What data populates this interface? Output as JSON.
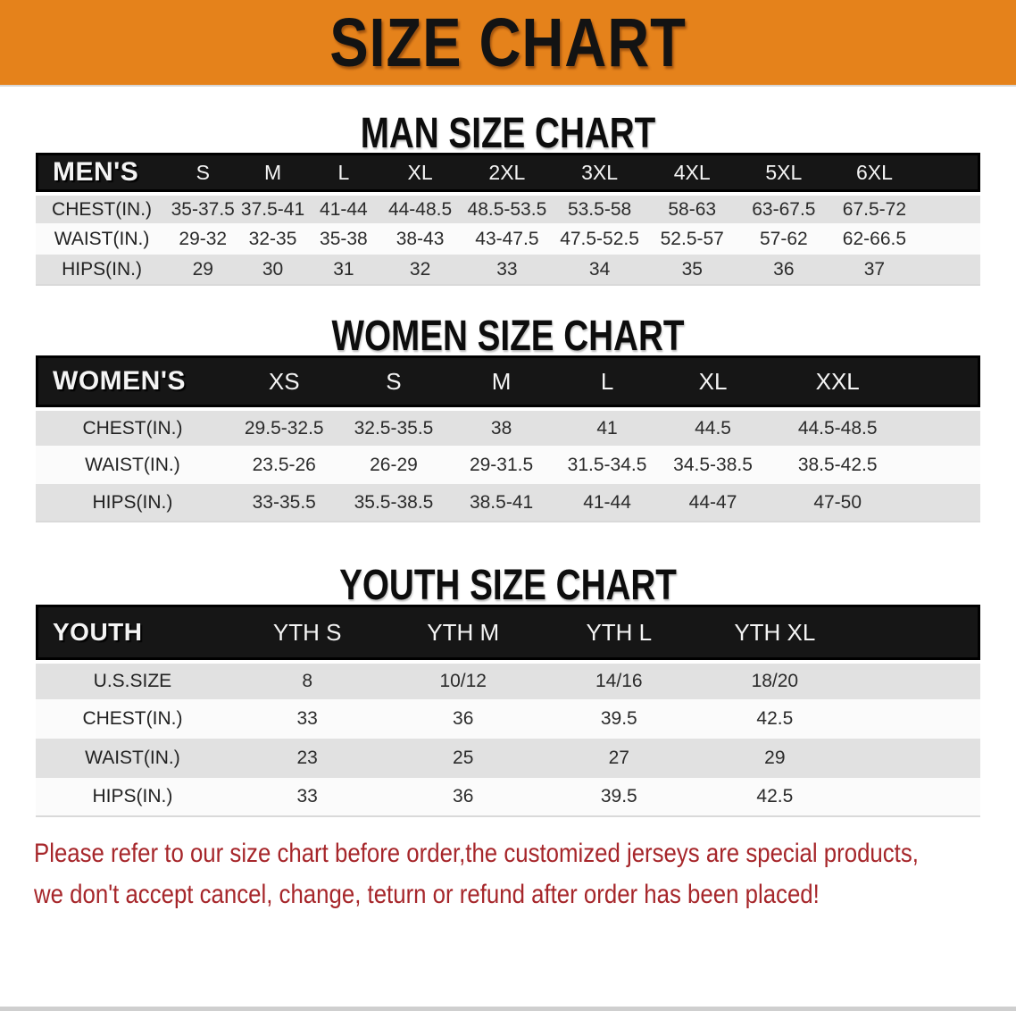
{
  "theme": {
    "banner_bg": "#E5821B",
    "header_bar_bg": "#161616",
    "row_alt_bg": "#E1E1E1",
    "row_bg": "#FBFBFB",
    "disclaimer_color": "#A6262A"
  },
  "banner": {
    "title": "SIZE CHART"
  },
  "sections": [
    {
      "heading": "MAN SIZE CHART",
      "table": {
        "label": "MEN'S",
        "columns": [
          "S",
          "M",
          "L",
          "XL",
          "2XL",
          "3XL",
          "4XL",
          "5XL",
          "6XL"
        ],
        "rows": [
          {
            "label": "CHEST(IN.)",
            "values": [
              "35-37.5",
              "37.5-41",
              "41-44",
              "44-48.5",
              "48.5-53.5",
              "53.5-58",
              "58-63",
              "63-67.5",
              "67.5-72"
            ]
          },
          {
            "label": "WAIST(IN.)",
            "values": [
              "29-32",
              "32-35",
              "35-38",
              "38-43",
              "43-47.5",
              "47.5-52.5",
              "52.5-57",
              "57-62",
              "62-66.5"
            ]
          },
          {
            "label": "HIPS(IN.)",
            "values": [
              "29",
              "30",
              "31",
              "32",
              "33",
              "34",
              "35",
              "36",
              "37"
            ]
          }
        ]
      }
    },
    {
      "heading": "WOMEN SIZE CHART",
      "table": {
        "label": "WOMEN'S",
        "columns": [
          "XS",
          "S",
          "M",
          "L",
          "XL",
          "XXL"
        ],
        "rows": [
          {
            "label": "CHEST(IN.)",
            "values": [
              "29.5-32.5",
              "32.5-35.5",
              "38",
              "41",
              "44.5",
              "44.5-48.5"
            ]
          },
          {
            "label": "WAIST(IN.)",
            "values": [
              "23.5-26",
              "26-29",
              "29-31.5",
              "31.5-34.5",
              "34.5-38.5",
              "38.5-42.5"
            ]
          },
          {
            "label": "HIPS(IN.)",
            "values": [
              "33-35.5",
              "35.5-38.5",
              "38.5-41",
              "41-44",
              "44-47",
              "47-50"
            ]
          }
        ]
      }
    },
    {
      "heading": "YOUTH SIZE CHART",
      "table": {
        "label": "YOUTH",
        "columns": [
          "YTH S",
          "YTH M",
          "YTH L",
          "YTH XL"
        ],
        "rows": [
          {
            "label": "U.S.SIZE",
            "values": [
              "8",
              "10/12",
              "14/16",
              "18/20"
            ]
          },
          {
            "label": "CHEST(IN.)",
            "values": [
              "33",
              "36",
              "39.5",
              "42.5"
            ]
          },
          {
            "label": "WAIST(IN.)",
            "values": [
              "23",
              "25",
              "27",
              "29"
            ]
          },
          {
            "label": "HIPS(IN.)",
            "values": [
              "33",
              "36",
              "39.5",
              "42.5"
            ]
          }
        ]
      }
    }
  ],
  "disclaimer": {
    "line1": "Please refer to our size chart before order,the customized jerseys are special products,",
    "line2": "we don't accept cancel, change, teturn or refund after order has been placed!"
  }
}
